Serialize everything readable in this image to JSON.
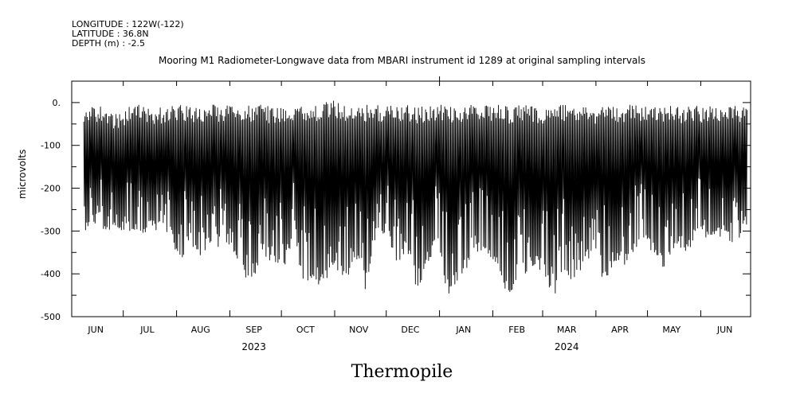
{
  "header": {
    "longitude": "LONGITUDE : 122W(-122)",
    "latitude": "LATITUDE : 36.8N",
    "depth": "DEPTH (m) : -2.5"
  },
  "caption": "Thermopile",
  "chart_data": {
    "type": "line",
    "title": "Mooring M1 Radiometer-Longwave data from MBARI instrument id 1289 at original sampling intervals",
    "xlabel": "",
    "ylabel": "microvolts",
    "ylim": [
      -500,
      50
    ],
    "yticks": [
      0,
      -100,
      -200,
      -300,
      -400,
      -500
    ],
    "ytick_labels": [
      "0.",
      "-100",
      "-200",
      "-300",
      "-400",
      "-500"
    ],
    "xlim": [
      "2023-06-01",
      "2024-06-30"
    ],
    "x_months": [
      "JUN",
      "JUL",
      "AUG",
      "SEP",
      "OCT",
      "NOV",
      "DEC",
      "JAN",
      "FEB",
      "MAR",
      "APR",
      "MAY",
      "JUN"
    ],
    "x_years": [
      "2023",
      "2024"
    ],
    "grid": false,
    "series": [
      {
        "segments_note": "",
        "x": [
          "2023-06-08",
          "2023-06-12",
          "2023-06-16",
          "2023-06-22",
          "2023-06-28",
          "2023-07-05",
          "2023-07-10",
          "2023-07-16",
          "2023-07-22",
          "2023-07-28",
          "2023-08-03",
          "2023-08-09",
          "2023-08-15",
          "2023-08-21",
          "2023-08-27",
          "2023-09-02",
          "2023-09-08",
          "2023-09-14",
          "2023-09-20",
          "2023-09-26",
          "2023-10-02",
          "2023-10-08",
          "2023-10-14",
          "2023-10-20",
          "2023-10-26",
          "2023-11-01",
          "2023-11-07",
          "2023-11-13",
          "2023-11-19",
          "2023-11-25",
          "2023-12-01",
          "2023-12-07",
          "2023-12-13",
          "2023-12-19",
          "2023-12-25",
          "2023-12-31",
          "2024-01-06",
          "2024-01-12",
          "2024-01-18",
          "2024-01-24",
          "2024-01-30",
          "2024-02-05",
          "2024-02-11",
          "2024-02-17",
          "2024-02-23",
          "2024-03-01",
          "2024-03-07",
          "2024-03-13",
          "2024-03-19",
          "2024-03-25",
          "2024-03-31",
          "2024-04-06",
          "2024-04-12",
          "2024-04-18",
          "2024-04-24",
          "2024-04-30",
          "2024-05-06",
          "2024-05-12",
          "2024-05-18",
          "2024-05-24",
          "2024-05-30",
          "2024-06-05",
          "2024-06-11",
          "2024-06-17",
          "2024-06-23",
          "2024-06-28"
        ],
        "min": [
          -320,
          -280,
          -300,
          -310,
          -300,
          -300,
          -310,
          -300,
          -300,
          -310,
          -380,
          -330,
          -370,
          -330,
          -340,
          -350,
          -390,
          -440,
          -350,
          -380,
          -390,
          -330,
          -420,
          -440,
          -430,
          -380,
          -430,
          -360,
          -440,
          -330,
          -300,
          -400,
          -350,
          -440,
          -380,
          -330,
          -460,
          -420,
          -380,
          -350,
          -360,
          -410,
          -470,
          -420,
          -380,
          -400,
          -460,
          -400,
          -430,
          -380,
          -360,
          -430,
          -370,
          -380,
          -340,
          -330,
          -360,
          -400,
          -330,
          -360,
          -300,
          -320,
          -310,
          -330,
          -320,
          -290
        ],
        "max": [
          -25,
          -10,
          -5,
          -10,
          -30,
          -5,
          -5,
          -10,
          -10,
          -5,
          -5,
          -5,
          -10,
          -5,
          -5,
          -5,
          -10,
          -5,
          -5,
          -10,
          -5,
          -10,
          -5,
          -5,
          0,
          5,
          -5,
          -10,
          -5,
          -5,
          -5,
          -10,
          -5,
          -10,
          -5,
          -5,
          -5,
          -10,
          -5,
          -5,
          -5,
          -5,
          -10,
          -5,
          -5,
          -10,
          -5,
          -5,
          -10,
          -5,
          -10,
          -5,
          -10,
          -5,
          -5,
          -5,
          -10,
          -5,
          -10,
          -5,
          -5,
          -10,
          -5,
          -10,
          -5,
          -10
        ]
      }
    ]
  }
}
